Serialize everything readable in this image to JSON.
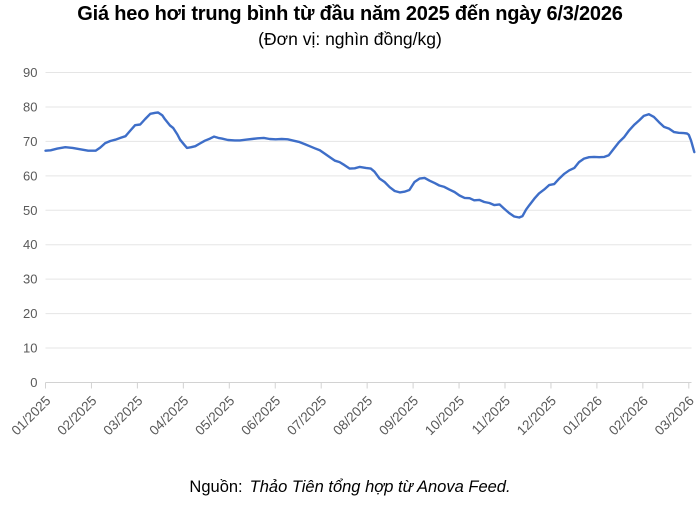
{
  "title": "Giá heo hơi trung bình từ đầu năm 2025 đến ngày 6/3/2026",
  "subtitle": "(Đơn vị: nghìn đồng/kg)",
  "source": {
    "prefix": "Nguồn:",
    "text": "Thảo Tiên tổng hợp từ Anova Feed."
  },
  "colors": {
    "line": "#3E6EC8",
    "grid": "#e5e5e5",
    "axis": "#d2d2d2",
    "tick_label": "#595959"
  },
  "chart_data": {
    "type": "line",
    "title": "Giá heo hơi trung bình từ đầu năm 2025 đến ngày 6/3/2026",
    "unit": "nghìn đồng/kg",
    "xlabel": "",
    "ylabel": "",
    "ylim": [
      0,
      90
    ],
    "y_ticks": [
      0,
      10,
      20,
      30,
      40,
      50,
      60,
      70,
      80,
      90
    ],
    "grid": "horizontal",
    "legend": "none",
    "x_labels": [
      "01/2025",
      "02/2025",
      "03/2025",
      "04/2025",
      "05/2025",
      "06/2025",
      "07/2025",
      "08/2025",
      "09/2025",
      "10/2025",
      "11/2025",
      "12/2025",
      "01/2026",
      "02/2026",
      "03/2026"
    ],
    "x_unit": "month-index from 01/2025 tick",
    "series": [
      {
        "name": "Giá heo hơi trung bình (nghìn đồng/kg)",
        "points": [
          [
            0,
            67.3
          ],
          [
            0.11,
            67.4
          ],
          [
            0.26,
            67.9
          ],
          [
            0.43,
            68.3
          ],
          [
            0.59,
            68.1
          ],
          [
            0.76,
            67.7
          ],
          [
            0.93,
            67.3
          ],
          [
            1.09,
            67.3
          ],
          [
            1.19,
            68.2
          ],
          [
            1.3,
            69.5
          ],
          [
            1.41,
            70.1
          ],
          [
            1.52,
            70.5
          ],
          [
            1.63,
            71
          ],
          [
            1.74,
            71.5
          ],
          [
            1.85,
            73.2
          ],
          [
            1.95,
            74.7
          ],
          [
            2.06,
            74.9
          ],
          [
            2.17,
            76.5
          ],
          [
            2.28,
            78
          ],
          [
            2.39,
            78.3
          ],
          [
            2.45,
            78.4
          ],
          [
            2.54,
            77.6
          ],
          [
            2.6,
            76.4
          ],
          [
            2.71,
            74.6
          ],
          [
            2.78,
            73.9
          ],
          [
            2.87,
            72
          ],
          [
            2.93,
            70.5
          ],
          [
            3.02,
            69
          ],
          [
            3.08,
            68.1
          ],
          [
            3.17,
            68.3
          ],
          [
            3.26,
            68.6
          ],
          [
            3.36,
            69.4
          ],
          [
            3.47,
            70.2
          ],
          [
            3.58,
            70.8
          ],
          [
            3.67,
            71.4
          ],
          [
            3.76,
            71
          ],
          [
            3.84,
            70.8
          ],
          [
            3.97,
            70.4
          ],
          [
            4.12,
            70.3
          ],
          [
            4.23,
            70.3
          ],
          [
            4.36,
            70.5
          ],
          [
            4.49,
            70.7
          ],
          [
            4.62,
            70.9
          ],
          [
            4.75,
            71
          ],
          [
            4.88,
            70.7
          ],
          [
            5.01,
            70.6
          ],
          [
            5.14,
            70.7
          ],
          [
            5.27,
            70.6
          ],
          [
            5.4,
            70.2
          ],
          [
            5.53,
            69.8
          ],
          [
            5.64,
            69.2
          ],
          [
            5.75,
            68.6
          ],
          [
            5.86,
            68
          ],
          [
            5.97,
            67.4
          ],
          [
            6.08,
            66.4
          ],
          [
            6.19,
            65.4
          ],
          [
            6.3,
            64.4
          ],
          [
            6.4,
            64
          ],
          [
            6.51,
            63.1
          ],
          [
            6.62,
            62.1
          ],
          [
            6.73,
            62.2
          ],
          [
            6.84,
            62.6
          ],
          [
            6.97,
            62.3
          ],
          [
            7.08,
            62.1
          ],
          [
            7.16,
            61.2
          ],
          [
            7.27,
            59.2
          ],
          [
            7.38,
            58.2
          ],
          [
            7.49,
            56.7
          ],
          [
            7.6,
            55.6
          ],
          [
            7.71,
            55.2
          ],
          [
            7.81,
            55.4
          ],
          [
            7.92,
            55.9
          ],
          [
            8.03,
            58.2
          ],
          [
            8.14,
            59.2
          ],
          [
            8.25,
            59.4
          ],
          [
            8.36,
            58.6
          ],
          [
            8.47,
            57.9
          ],
          [
            8.57,
            57.2
          ],
          [
            8.68,
            56.8
          ],
          [
            8.79,
            56
          ],
          [
            8.9,
            55.3
          ],
          [
            9.01,
            54.3
          ],
          [
            9.12,
            53.6
          ],
          [
            9.23,
            53.5
          ],
          [
            9.33,
            52.9
          ],
          [
            9.44,
            53
          ],
          [
            9.55,
            52.4
          ],
          [
            9.66,
            52.1
          ],
          [
            9.77,
            51.5
          ],
          [
            9.88,
            51.7
          ],
          [
            9.98,
            50.5
          ],
          [
            10.09,
            49.2
          ],
          [
            10.2,
            48.2
          ],
          [
            10.31,
            47.9
          ],
          [
            10.38,
            48.3
          ],
          [
            10.46,
            50.2
          ],
          [
            10.53,
            51.5
          ],
          [
            10.64,
            53.4
          ],
          [
            10.74,
            54.9
          ],
          [
            10.85,
            56
          ],
          [
            10.96,
            57.3
          ],
          [
            11.07,
            57.6
          ],
          [
            11.18,
            59.2
          ],
          [
            11.29,
            60.6
          ],
          [
            11.4,
            61.6
          ],
          [
            11.51,
            62.3
          ],
          [
            11.61,
            64
          ],
          [
            11.72,
            65
          ],
          [
            11.83,
            65.4
          ],
          [
            11.94,
            65.5
          ],
          [
            12.05,
            65.4
          ],
          [
            12.16,
            65.5
          ],
          [
            12.26,
            66
          ],
          [
            12.37,
            67.9
          ],
          [
            12.48,
            69.8
          ],
          [
            12.59,
            71.2
          ],
          [
            12.7,
            73.2
          ],
          [
            12.81,
            74.8
          ],
          [
            12.92,
            76.1
          ],
          [
            13.02,
            77.4
          ],
          [
            13.13,
            77.9
          ],
          [
            13.24,
            77.1
          ],
          [
            13.35,
            75.6
          ],
          [
            13.46,
            74.2
          ],
          [
            13.57,
            73.7
          ],
          [
            13.68,
            72.7
          ],
          [
            13.78,
            72.5
          ],
          [
            13.89,
            72.4
          ],
          [
            13.96,
            72.3
          ],
          [
            14.0,
            71.9
          ],
          [
            14.05,
            70.2
          ],
          [
            14.12,
            66.9
          ]
        ]
      }
    ]
  }
}
